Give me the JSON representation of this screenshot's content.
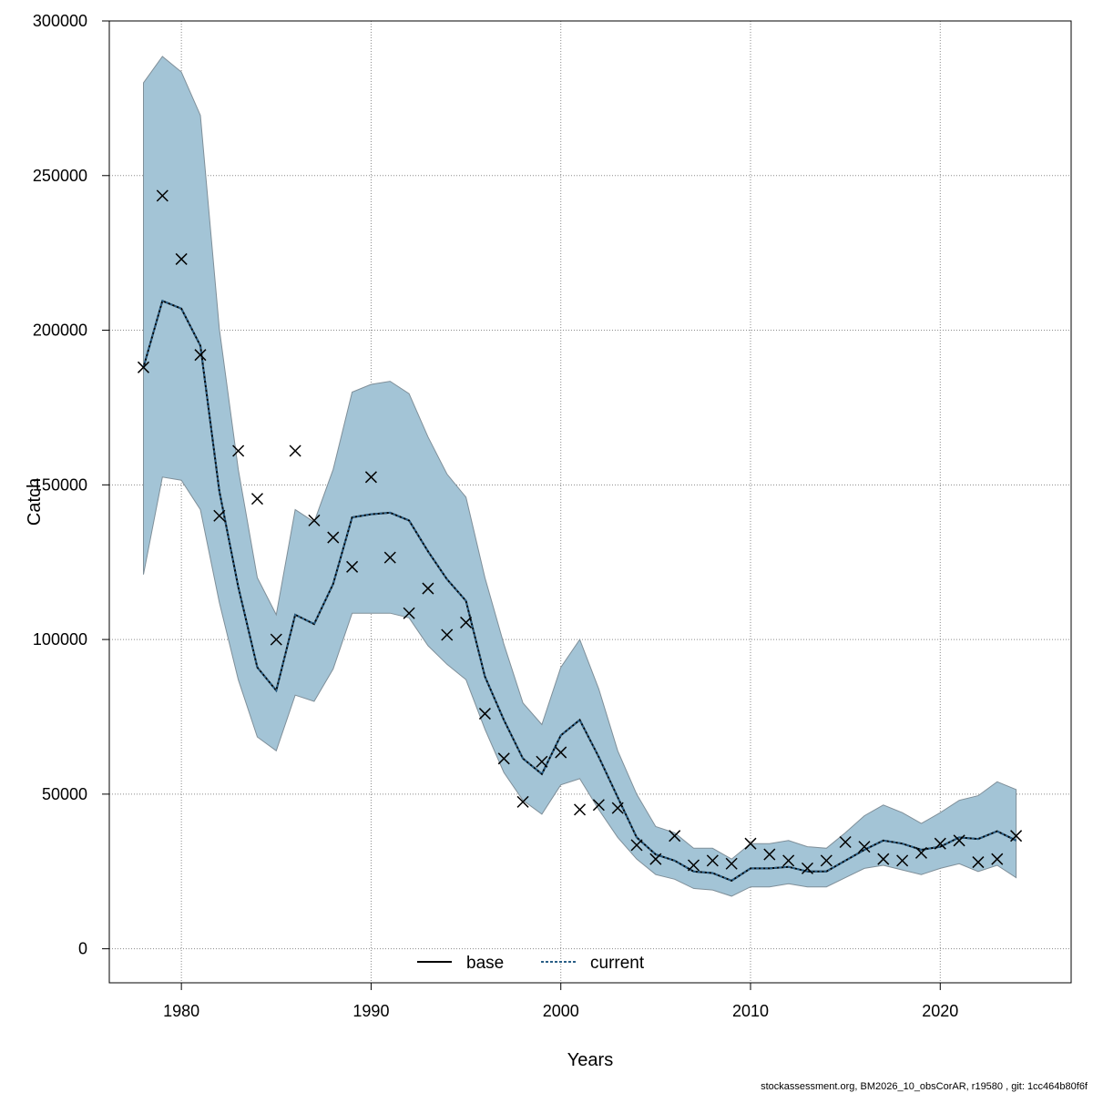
{
  "chart_data": {
    "type": "line",
    "xlabel": "Years",
    "ylabel": "Catch",
    "xlim": [
      1976.2,
      2026.9
    ],
    "ylim": [
      -11000,
      300000
    ],
    "xticks": [
      1980,
      1990,
      2000,
      2010,
      2020
    ],
    "yticks": [
      0,
      50000,
      100000,
      150000,
      200000,
      250000,
      300000
    ],
    "grid": true,
    "legend": {
      "position": "bottom-center",
      "entries": [
        "base",
        "current"
      ]
    },
    "colors": {
      "band": "#a3c4d6",
      "band_edge": "#7f8f99",
      "base": "#000000",
      "current": "#2a5f86",
      "observed": "#000000"
    },
    "x": [
      1978,
      1979,
      1980,
      1981,
      1982,
      1983,
      1984,
      1985,
      1986,
      1987,
      1988,
      1989,
      1990,
      1991,
      1992,
      1993,
      1994,
      1995,
      1996,
      1997,
      1998,
      1999,
      2000,
      2001,
      2002,
      2003,
      2004,
      2005,
      2006,
      2007,
      2008,
      2009,
      2010,
      2011,
      2012,
      2013,
      2014,
      2015,
      2016,
      2017,
      2018,
      2019,
      2020,
      2021,
      2022,
      2023,
      2024
    ],
    "series": [
      {
        "name": "base",
        "style": "solid",
        "values": [
          188000,
          209500,
          207000,
          195000,
          148000,
          117000,
          91000,
          83500,
          108000,
          105000,
          118000,
          139500,
          140500,
          141000,
          138500,
          128500,
          119500,
          112500,
          88000,
          74000,
          61500,
          56500,
          69000,
          74000,
          62000,
          49000,
          36000,
          30500,
          28500,
          25000,
          24500,
          22000,
          26000,
          26000,
          26500,
          25000,
          25000,
          28500,
          32000,
          35000,
          34000,
          32000,
          33000,
          36000,
          35500,
          38000,
          35000
        ]
      },
      {
        "name": "current",
        "style": "dotted",
        "values": [
          188000,
          209500,
          207000,
          195000,
          148000,
          117000,
          91000,
          83500,
          108000,
          105000,
          118000,
          139500,
          140500,
          141000,
          138500,
          128500,
          119500,
          112500,
          88000,
          74000,
          61500,
          56500,
          69000,
          74000,
          62000,
          49000,
          36000,
          30500,
          28500,
          25000,
          24500,
          22000,
          26000,
          26000,
          26500,
          25000,
          25000,
          28500,
          32000,
          35000,
          34000,
          32000,
          33000,
          36000,
          35500,
          38000,
          35000
        ]
      }
    ],
    "band": {
      "lower": [
        121000,
        152500,
        151500,
        142000,
        112000,
        87000,
        68500,
        64000,
        82000,
        80000,
        90500,
        108500,
        108500,
        108500,
        107000,
        98000,
        92000,
        87000,
        71000,
        57000,
        48000,
        43500,
        53000,
        55000,
        45000,
        36000,
        29000,
        24000,
        22500,
        19500,
        19000,
        17000,
        20000,
        20000,
        21000,
        20000,
        20000,
        23000,
        26000,
        27000,
        25500,
        24000,
        26000,
        27500,
        25000,
        27000,
        23000
      ],
      "upper": [
        280000,
        288500,
        283500,
        269500,
        200500,
        155000,
        120000,
        108000,
        142000,
        138000,
        155000,
        180000,
        182500,
        183500,
        179500,
        165500,
        153500,
        146000,
        120000,
        98500,
        79500,
        72500,
        91000,
        100000,
        84000,
        64000,
        50000,
        39500,
        37500,
        32500,
        32500,
        29000,
        34000,
        34000,
        35000,
        33000,
        32500,
        37500,
        43000,
        46500,
        44000,
        40500,
        44000,
        48000,
        49500,
        54000,
        51500
      ]
    },
    "observed": [
      188000,
      243500,
      223000,
      192000,
      140000,
      161000,
      145500,
      100000,
      161000,
      138500,
      133000,
      123500,
      152500,
      126500,
      108500,
      116500,
      101500,
      105500,
      76000,
      61500,
      47500,
      60500,
      63500,
      45000,
      46500,
      45500,
      33500,
      29000,
      36500,
      27000,
      28500,
      27500,
      34000,
      30500,
      28500,
      26000,
      28500,
      34500,
      33000,
      29000,
      28500,
      31000,
      34000,
      35000,
      28000,
      29000,
      36500
    ]
  },
  "footnote": "stockassessment.org, BM2026_10_obsCorAR, r19580 , git: 1cc464b80f6f"
}
